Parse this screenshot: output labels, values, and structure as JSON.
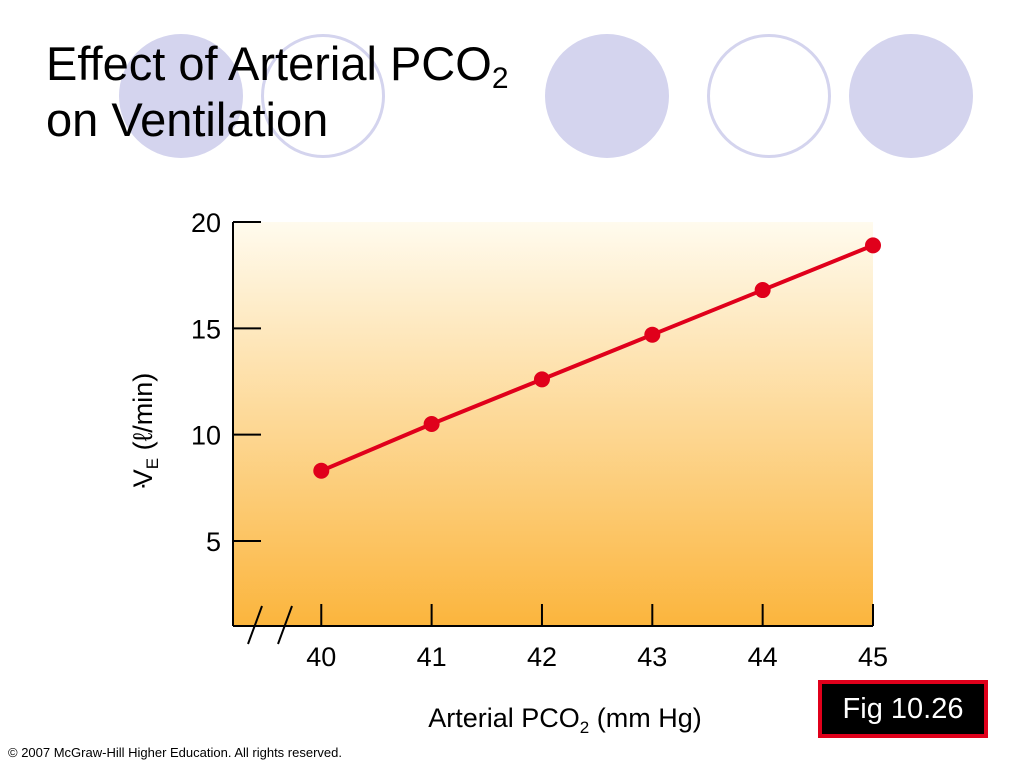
{
  "slide": {
    "title_line1": "Effect of Arterial PCO",
    "title_line1_sub": "2",
    "title_line2": "on Ventilation",
    "figure_label": "Fig 10.26",
    "copyright": "© 2007 McGraw-Hill Higher Education. All rights reserved."
  },
  "theme": {
    "decor_circle_color": "#d4d4ee",
    "line_color": "#e0001b",
    "plot_gradient_top": "#fffbee",
    "plot_gradient_bottom": "#fbb53d"
  },
  "chart_data": {
    "type": "line",
    "title": "",
    "xlabel": "Arterial PCO",
    "xlabel_sub": "2",
    "xlabel_unit": " (mm Hg)",
    "ylabel_symbol": "V",
    "ylabel_sub": "E",
    "ylabel_unit": " (ℓ/min)",
    "x": [
      40,
      41,
      42,
      43,
      44,
      45
    ],
    "x_tick_labels": [
      "40",
      "41",
      "42",
      "43",
      "44",
      "45"
    ],
    "y_ticks": [
      5,
      10,
      15,
      20
    ],
    "y_tick_labels": [
      "5",
      "10",
      "15",
      "20"
    ],
    "xlim": [
      39.2,
      45
    ],
    "ylim": [
      1,
      20
    ],
    "axis_break": true,
    "grid": false,
    "series": [
      {
        "values": [
          8.3,
          10.5,
          12.6,
          14.7,
          16.8,
          18.9
        ]
      }
    ]
  }
}
